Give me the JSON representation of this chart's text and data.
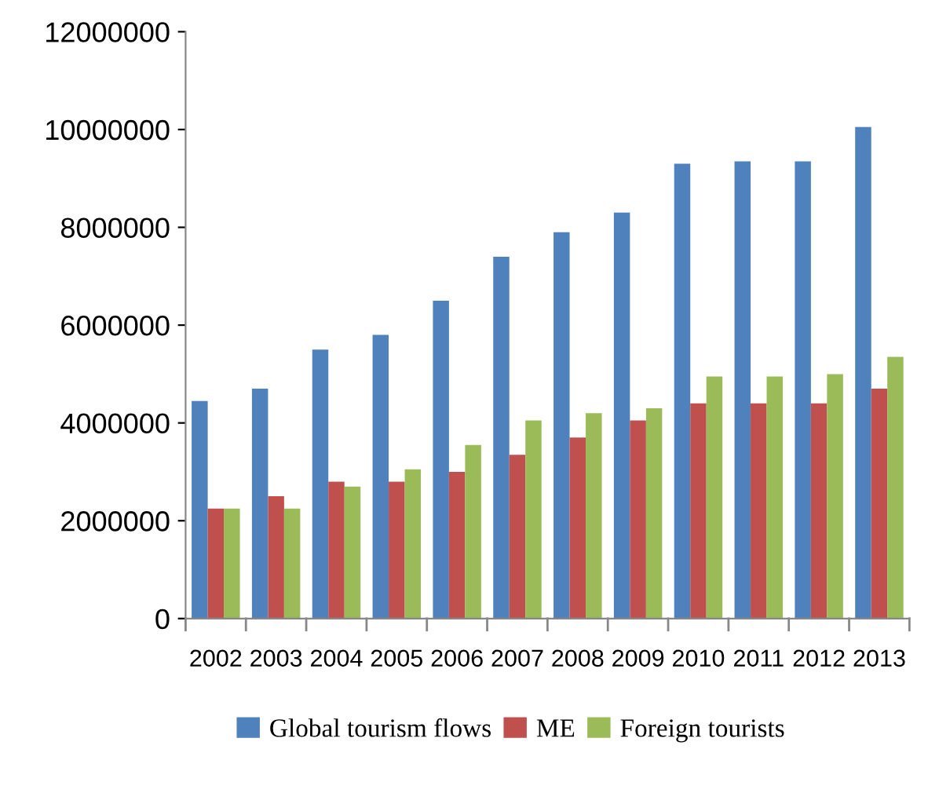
{
  "chart_data": {
    "type": "bar",
    "categories": [
      "2002",
      "2003",
      "2004",
      "2005",
      "2006",
      "2007",
      "2008",
      "2009",
      "2010",
      "2011",
      "2012",
      "2013"
    ],
    "series": [
      {
        "name": "Global tourism flows",
        "color": "#4f81bd",
        "values": [
          4450000,
          4700000,
          5500000,
          5800000,
          6500000,
          7400000,
          7900000,
          8300000,
          9300000,
          9350000,
          9350000,
          10050000
        ]
      },
      {
        "name": "ME",
        "color": "#c0504d",
        "values": [
          2250000,
          2500000,
          2800000,
          2800000,
          3000000,
          3350000,
          3700000,
          4050000,
          4400000,
          4400000,
          4400000,
          4700000
        ]
      },
      {
        "name": "Foreign tourists",
        "color": "#9bbb59",
        "values": [
          2250000,
          2250000,
          2700000,
          3050000,
          3550000,
          4050000,
          4200000,
          4300000,
          4950000,
          4950000,
          5000000,
          5350000
        ]
      }
    ],
    "ylim": [
      0,
      12000000
    ],
    "yticks": [
      0,
      2000000,
      4000000,
      6000000,
      8000000,
      10000000,
      12000000
    ],
    "grid": false,
    "legend": "bottom"
  }
}
